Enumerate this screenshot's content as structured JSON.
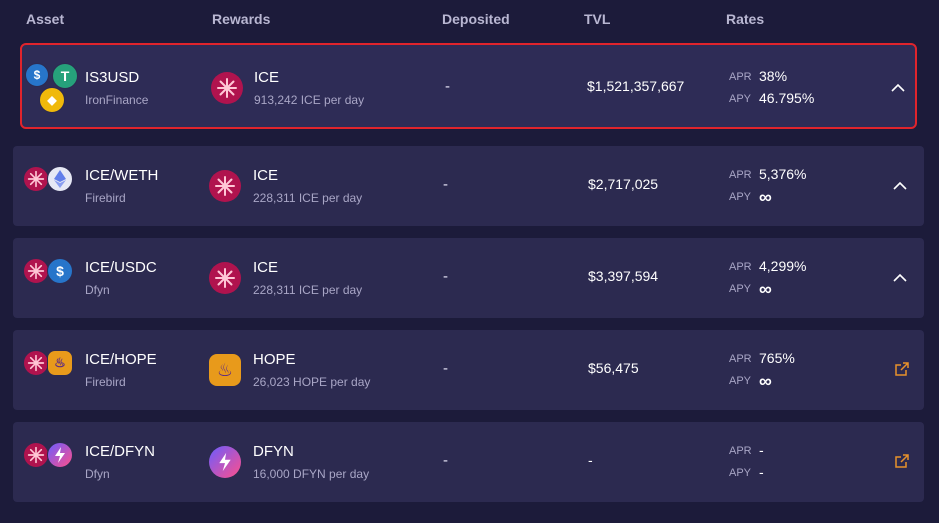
{
  "header": {
    "asset": "Asset",
    "rewards": "Rewards",
    "deposited": "Deposited",
    "tvl": "TVL",
    "rates": "Rates"
  },
  "rows": [
    {
      "asset_name": "IS3USD",
      "asset_source": "IronFinance",
      "reward_name": "ICE",
      "reward_rate": "913,242 ICE per day",
      "deposited": "-",
      "tvl": "$1,521,357,667",
      "apr_label": "APR",
      "apr": "38%",
      "apy_label": "APY",
      "apy": "46.795%",
      "action_icon": "chevron-up-icon",
      "highlighted": true
    },
    {
      "asset_name": "ICE/WETH",
      "asset_source": "Firebird",
      "reward_name": "ICE",
      "reward_rate": "228,311 ICE per day",
      "deposited": "-",
      "tvl": "$2,717,025",
      "apr_label": "APR",
      "apr": "5,376%",
      "apy_label": "APY",
      "apy": "∞",
      "action_icon": "chevron-up-icon"
    },
    {
      "asset_name": "ICE/USDC",
      "asset_source": "Dfyn",
      "reward_name": "ICE",
      "reward_rate": "228,311 ICE per day",
      "deposited": "-",
      "tvl": "$3,397,594",
      "apr_label": "APR",
      "apr": "4,299%",
      "apy_label": "APY",
      "apy": "∞",
      "action_icon": "chevron-up-icon"
    },
    {
      "asset_name": "ICE/HOPE",
      "asset_source": "Firebird",
      "reward_name": "HOPE",
      "reward_rate": "26,023 HOPE per day",
      "deposited": "-",
      "tvl": "$56,475",
      "apr_label": "APR",
      "apr": "765%",
      "apy_label": "APY",
      "apy": "∞",
      "action_icon": "external-link-icon"
    },
    {
      "asset_name": "ICE/DFYN",
      "asset_source": "Dfyn",
      "reward_name": "DFYN",
      "reward_rate": "16,000 DFYN per day",
      "deposited": "-",
      "tvl": "-",
      "apr_label": "APR",
      "apr": "-",
      "apy_label": "APY",
      "apy": "-",
      "action_icon": "external-link-icon"
    }
  ],
  "colors": {
    "background": "#1c1b3a",
    "row": "#2c2a50",
    "highlight_border": "#e0242c",
    "ice": "#b0134e",
    "external_link": "#e8912b"
  }
}
